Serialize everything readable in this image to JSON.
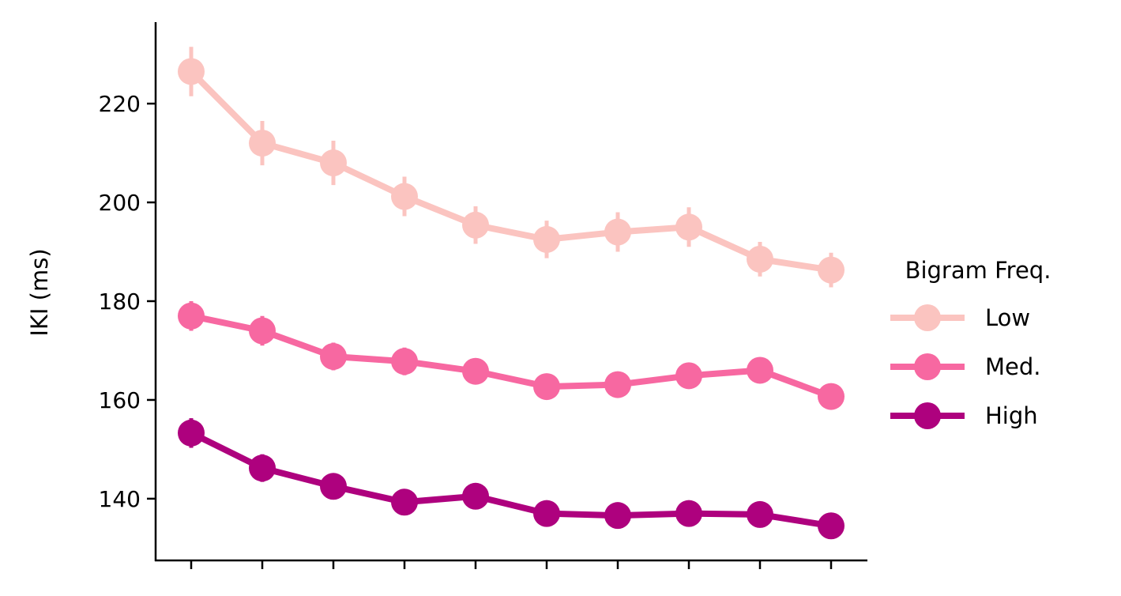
{
  "chart_data": {
    "type": "line",
    "title": "",
    "xlabel": "",
    "ylabel": "IKI (ms)",
    "x": [
      1,
      2,
      3,
      4,
      5,
      6,
      7,
      8,
      9,
      10
    ],
    "xlim": [
      0.5,
      10.5
    ],
    "ylim": [
      127.5,
      236.5
    ],
    "yticks": [
      140,
      160,
      180,
      200,
      220
    ],
    "x_tick_labels_shown": false,
    "grid": false,
    "legend": {
      "title": "Bigram Freq.",
      "placement": "outside-right"
    },
    "series": [
      {
        "name": "Low",
        "color": "#fbc4c0",
        "values": [
          226.5,
          212.0,
          208.0,
          201.2,
          195.4,
          192.5,
          194.0,
          195.0,
          188.5,
          186.3
        ],
        "errors": [
          5.0,
          4.5,
          4.5,
          4.0,
          3.8,
          3.8,
          4.0,
          4.0,
          3.5,
          3.5
        ]
      },
      {
        "name": "Med.",
        "color": "#f768a1",
        "values": [
          177.0,
          174.0,
          168.8,
          167.8,
          165.8,
          162.7,
          163.1,
          164.9,
          166.0,
          160.7
        ],
        "errors": [
          3.0,
          3.0,
          2.8,
          2.8,
          2.6,
          2.6,
          2.6,
          2.6,
          2.6,
          2.4
        ]
      },
      {
        "name": "High",
        "color": "#ae017e",
        "values": [
          153.3,
          146.2,
          142.5,
          139.3,
          140.5,
          137.0,
          136.6,
          137.0,
          136.8,
          134.5
        ],
        "errors": [
          3.0,
          2.8,
          2.5,
          2.5,
          2.5,
          2.2,
          2.2,
          2.2,
          2.2,
          2.0
        ]
      }
    ]
  }
}
